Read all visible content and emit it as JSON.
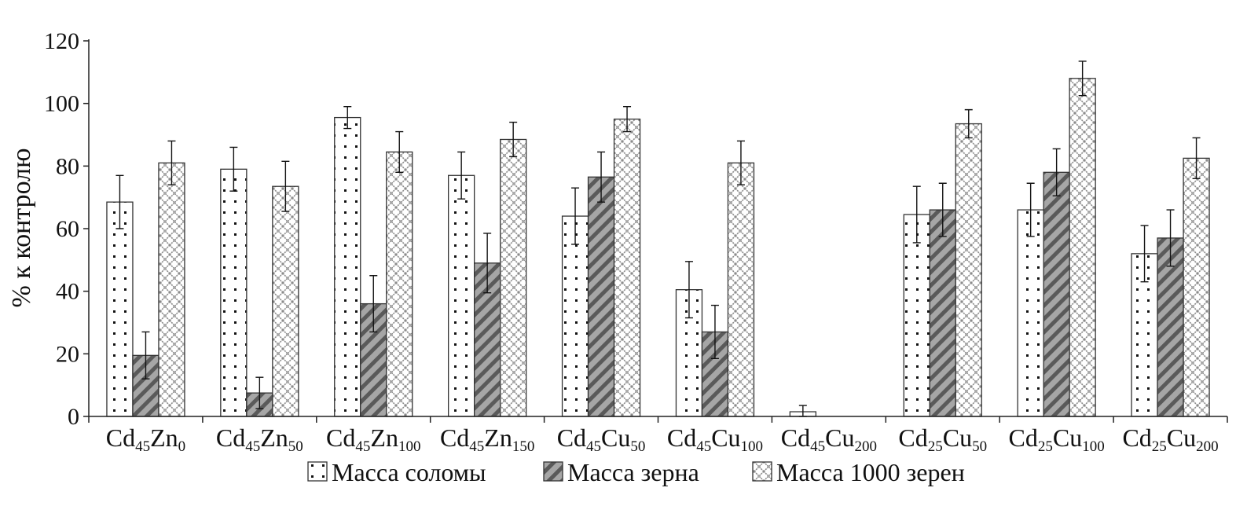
{
  "chart_data": {
    "type": "bar",
    "title": "",
    "xlabel": "",
    "ylabel": "% к контролю",
    "ylim": [
      0,
      120
    ],
    "yticks": [
      "0",
      "20",
      "40",
      "60",
      "80",
      "100",
      "120"
    ],
    "grid": false,
    "legend_position": "bottom",
    "categories": [
      {
        "a": "Cd",
        "a_sub": "45",
        "b": "Zn",
        "b_sub": "0"
      },
      {
        "a": "Cd",
        "a_sub": "45",
        "b": "Zn",
        "b_sub": "50"
      },
      {
        "a": "Cd",
        "a_sub": "45",
        "b": "Zn",
        "b_sub": "100"
      },
      {
        "a": "Cd",
        "a_sub": "45",
        "b": "Zn",
        "b_sub": "150"
      },
      {
        "a": "Cd",
        "a_sub": "45",
        "b": "Cu",
        "b_sub": "50"
      },
      {
        "a": "Cd",
        "a_sub": "45",
        "b": "Cu",
        "b_sub": "100"
      },
      {
        "a": "Cd",
        "a_sub": "45",
        "b": "Cu",
        "b_sub": "200"
      },
      {
        "a": "Cd",
        "a_sub": "25",
        "b": "Cu",
        "b_sub": "50"
      },
      {
        "a": "Cd",
        "a_sub": "25",
        "b": "Cu",
        "b_sub": "100"
      },
      {
        "a": "Cd",
        "a_sub": "25",
        "b": "Cu",
        "b_sub": "200"
      }
    ],
    "series": [
      {
        "name": "Масса соломы",
        "pattern": "dots",
        "values": [
          68.5,
          79,
          95.5,
          77,
          64,
          40.5,
          1.5,
          64.5,
          66,
          52
        ],
        "errors": [
          8.5,
          7,
          3.5,
          7.5,
          9,
          9,
          2,
          9,
          8.5,
          9
        ]
      },
      {
        "name": "Масса зерна",
        "pattern": "diagonal",
        "values": [
          19.5,
          7.5,
          36,
          49,
          76.5,
          27,
          null,
          66,
          78,
          57
        ],
        "errors": [
          7.5,
          5,
          9,
          9.5,
          8,
          8.5,
          null,
          8.5,
          7.5,
          9
        ]
      },
      {
        "name": "Масса 1000 зерен",
        "pattern": "lattice",
        "values": [
          81,
          73.5,
          84.5,
          88.5,
          95,
          81,
          null,
          93.5,
          108,
          82.5
        ],
        "errors": [
          7,
          8,
          6.5,
          5.5,
          4,
          7,
          null,
          4.5,
          5.5,
          6.5
        ]
      }
    ]
  },
  "colors": {
    "axis": "#222222",
    "bar_stroke": "#333333",
    "dots_bg": "#ffffff",
    "dots_fg": "#111111",
    "diagonal_bg": "#9a9a9a",
    "diagonal_fg": "#555555",
    "lattice_bg": "#ffffff",
    "lattice_fg": "#8c8c8c"
  }
}
